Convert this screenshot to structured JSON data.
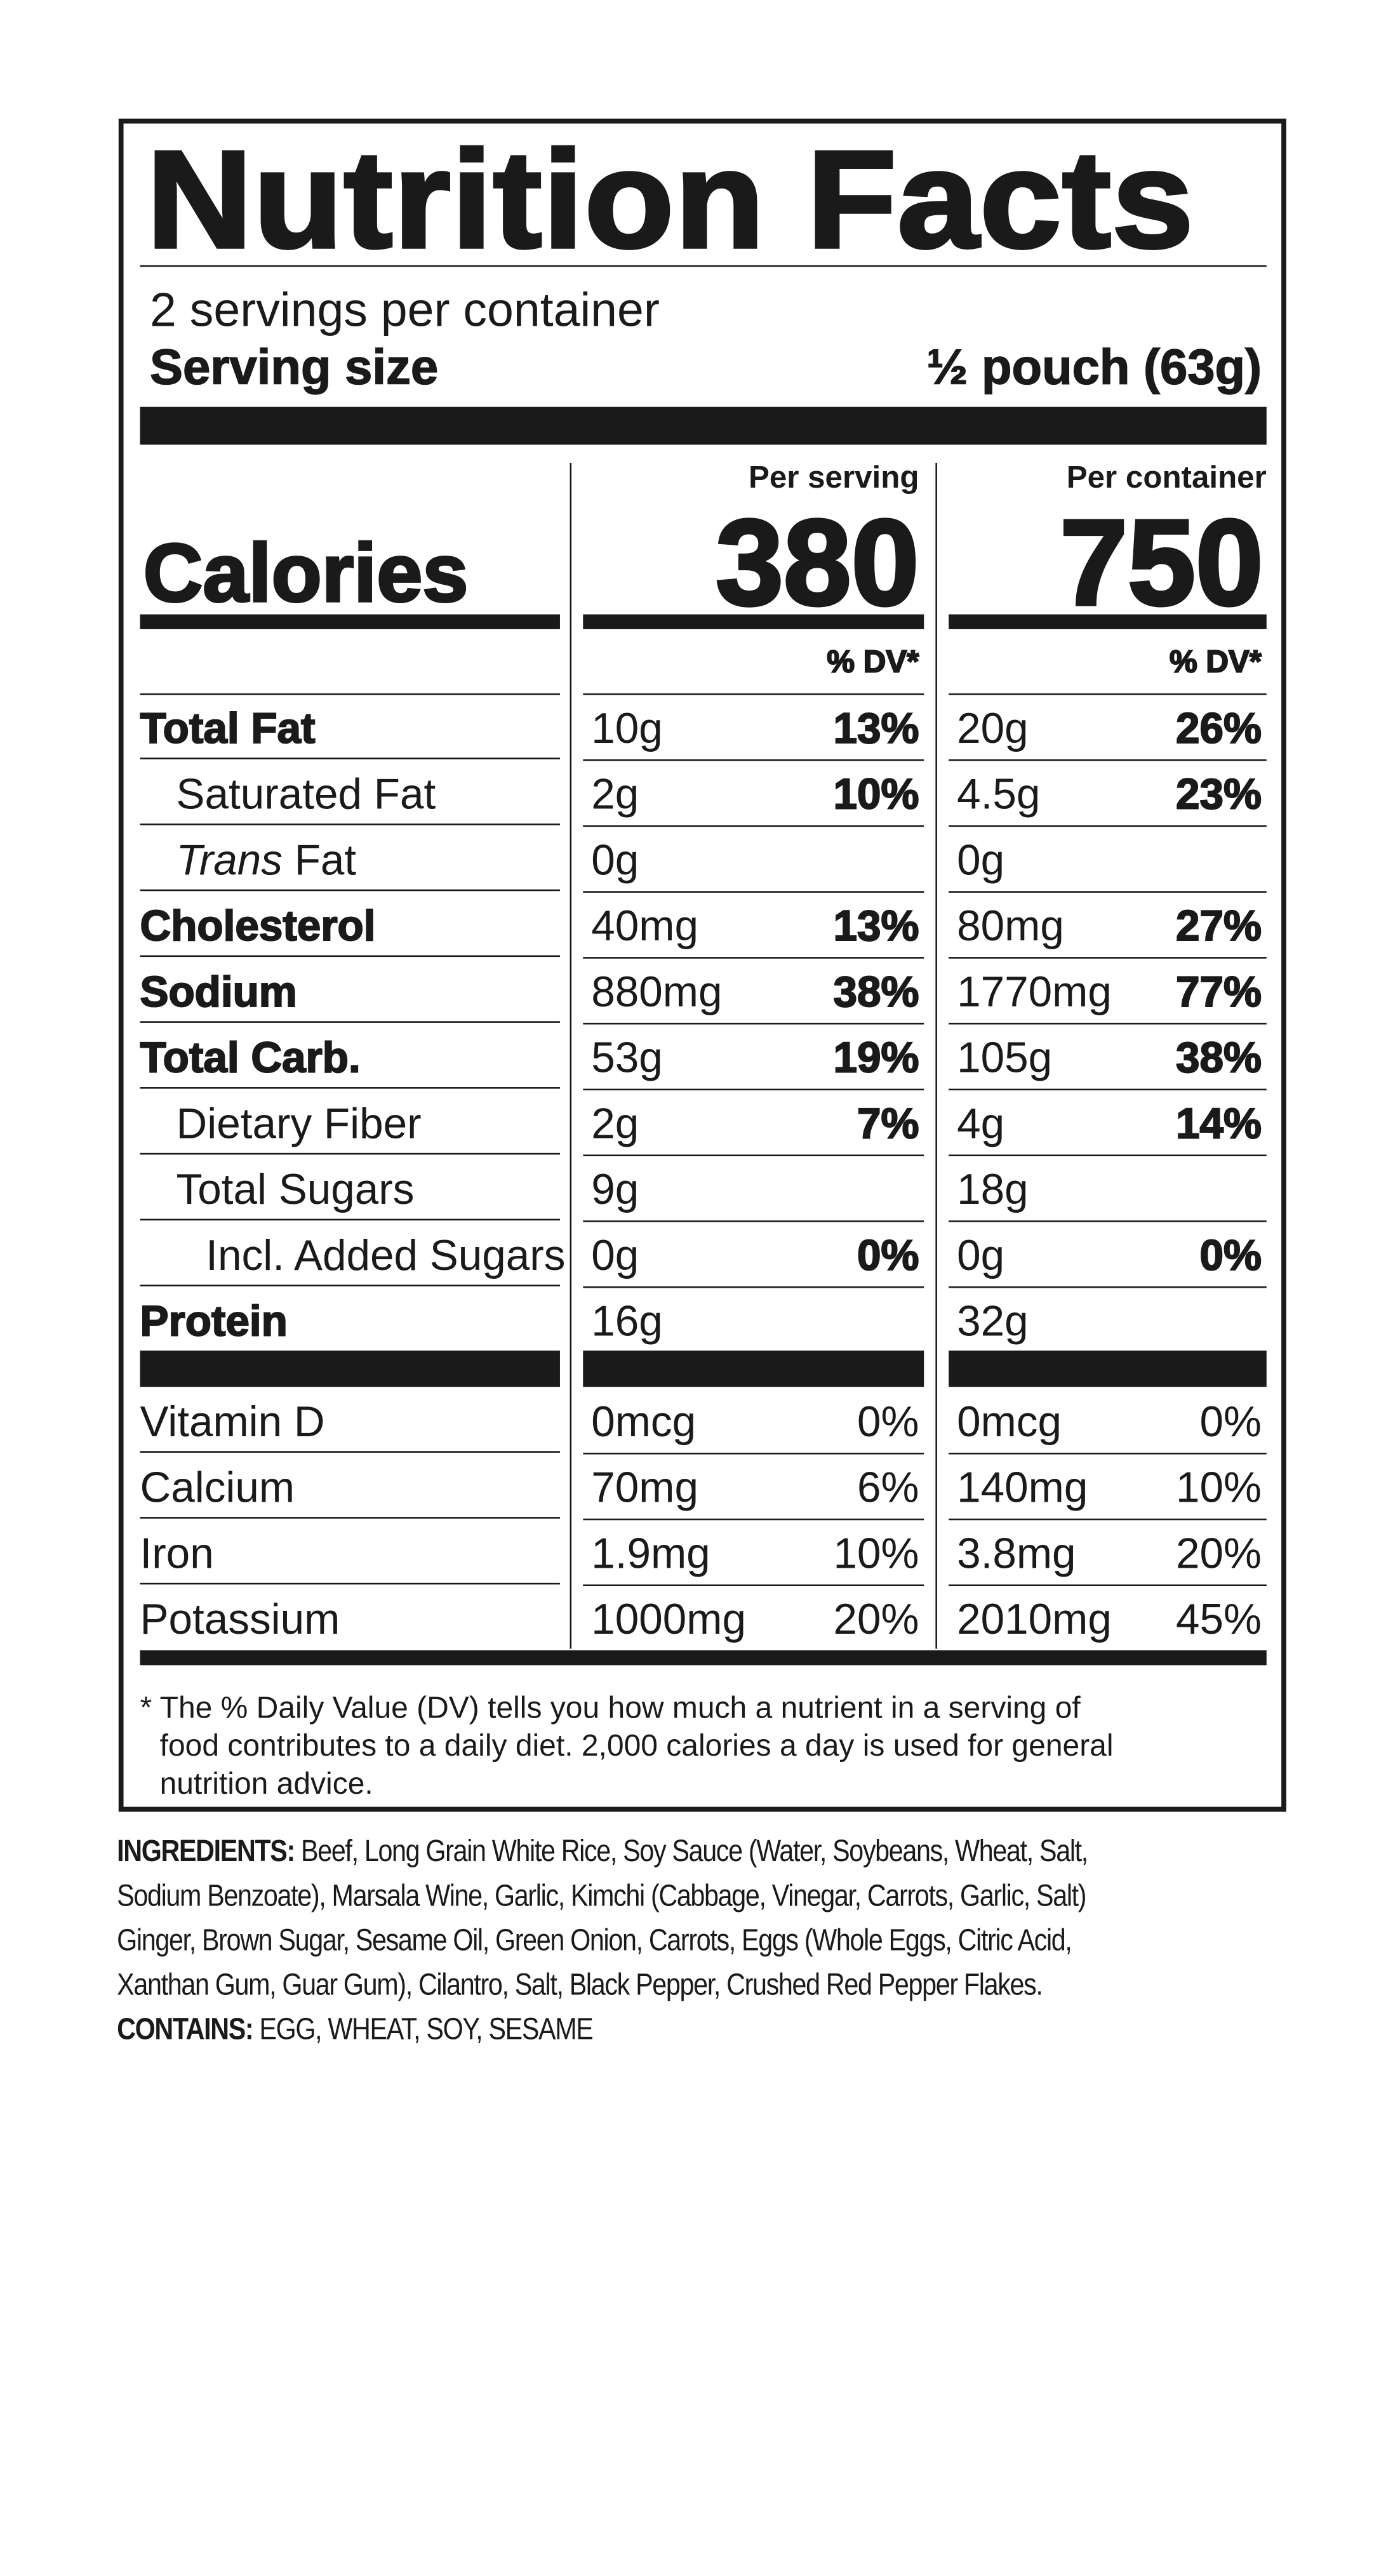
{
  "title": "Nutrition Facts",
  "servings_per_container": "2 servings per container",
  "serving_size_label": "Serving size",
  "serving_size_value": "½ pouch (63g)",
  "calories_label": "Calories",
  "columns": {
    "per_serving_label": "Per serving",
    "per_container_label": "Per container",
    "calories_per_serving": "380",
    "calories_per_container": "750",
    "dv_header": "% DV*"
  },
  "nutrients": [
    {
      "name": "Total Fat",
      "bold": true,
      "indent": 0,
      "serving": "10g",
      "serving_dv": "13%",
      "container": "20g",
      "container_dv": "26%"
    },
    {
      "name": "Saturated Fat",
      "bold": false,
      "indent": 1,
      "serving": "2g",
      "serving_dv": "10%",
      "container": "4.5g",
      "container_dv": "23%"
    },
    {
      "name_italic": "Trans",
      "name": " Fat",
      "bold": false,
      "indent": 1,
      "serving": "0g",
      "serving_dv": "",
      "container": "0g",
      "container_dv": ""
    },
    {
      "name": "Cholesterol",
      "bold": true,
      "indent": 0,
      "serving": "40mg",
      "serving_dv": "13%",
      "container": "80mg",
      "container_dv": "27%"
    },
    {
      "name": "Sodium",
      "bold": true,
      "indent": 0,
      "serving": "880mg",
      "serving_dv": "38%",
      "container": "1770mg",
      "container_dv": "77%"
    },
    {
      "name": "Total Carb.",
      "bold": true,
      "indent": 0,
      "serving": "53g",
      "serving_dv": "19%",
      "container": "105g",
      "container_dv": "38%"
    },
    {
      "name": "Dietary Fiber",
      "bold": false,
      "indent": 1,
      "serving": "2g",
      "serving_dv": "7%",
      "container": "4g",
      "container_dv": "14%"
    },
    {
      "name": "Total Sugars",
      "bold": false,
      "indent": 1,
      "serving": "9g",
      "serving_dv": "",
      "container": "18g",
      "container_dv": ""
    },
    {
      "name": "Incl. Added Sugars",
      "bold": false,
      "indent": 2,
      "serving": "0g",
      "serving_dv": "0%",
      "container": "0g",
      "container_dv": "0%"
    },
    {
      "name": "Protein",
      "bold": true,
      "indent": 0,
      "serving": "16g",
      "serving_dv": "",
      "container": "32g",
      "container_dv": ""
    }
  ],
  "vitamins": [
    {
      "name": "Vitamin D",
      "serving": "0mcg",
      "serving_dv": "0%",
      "container": "0mcg",
      "container_dv": "0%"
    },
    {
      "name": "Calcium",
      "serving": "70mg",
      "serving_dv": "6%",
      "container": "140mg",
      "container_dv": "10%"
    },
    {
      "name": "Iron",
      "serving": "1.9mg",
      "serving_dv": "10%",
      "container": "3.8mg",
      "container_dv": "20%"
    },
    {
      "name": "Potassium",
      "serving": "1000mg",
      "serving_dv": "20%",
      "container": "2010mg",
      "container_dv": "45%"
    }
  ],
  "footnote_lines": [
    "* The % Daily Value (DV) tells you how much a nutrient in a serving of",
    "food contributes to a daily diet. 2,000 calories a day is used for general",
    "nutrition advice."
  ],
  "ingredients": {
    "label": "INGREDIENTS:",
    "lines": [
      " Beef, Long Grain White Rice, Soy Sauce (Water, Soybeans, Wheat, Salt,",
      "Sodium Benzoate), Marsala Wine, Garlic, Kimchi (Cabbage, Vinegar, Carrots, Garlic, Salt)",
      "Ginger, Brown Sugar, Sesame Oil, Green Onion, Carrots, Eggs (Whole Eggs, Citric Acid,",
      "Xanthan Gum, Guar Gum), Cilantro, Salt, Black Pepper, Crushed Red Pepper Flakes."
    ],
    "contains_label": "CONTAINS:",
    "contains": " EGG, WHEAT, SOY, SESAME"
  }
}
